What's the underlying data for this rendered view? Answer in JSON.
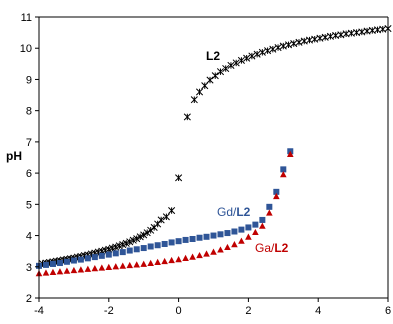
{
  "chart_data": {
    "type": "scatter",
    "title": "",
    "xlabel": "",
    "ylabel": "pH",
    "xlim": [
      -4,
      6
    ],
    "ylim": [
      2,
      11
    ],
    "x_ticks": [
      -4,
      -2,
      0,
      2,
      4,
      6
    ],
    "y_ticks": [
      2,
      3,
      4,
      5,
      6,
      7,
      8,
      9,
      10,
      11
    ],
    "x_tick_labels": [
      "-4",
      "-2",
      "0",
      "2",
      "4",
      "6"
    ],
    "y_tick_labels": [
      "2",
      "3",
      "4",
      "5",
      "6",
      "7",
      "8",
      "9",
      "10",
      "11"
    ],
    "grid": false,
    "labels": {
      "l2": "L2",
      "gd_prefix": "Gd/",
      "gd_suffix": "L2",
      "ga_prefix": "Ga/",
      "ga_suffix": "L2"
    },
    "colors": {
      "l2": "#000000",
      "gd": "#2f5597",
      "ga": "#c00000"
    },
    "series": [
      {
        "name": "L2",
        "marker": "asterisk",
        "points": [
          [
            -3.9,
            3.1
          ],
          [
            -3.8,
            3.12
          ],
          [
            -3.7,
            3.14
          ],
          [
            -3.6,
            3.16
          ],
          [
            -3.5,
            3.18
          ],
          [
            -3.4,
            3.2
          ],
          [
            -3.3,
            3.22
          ],
          [
            -3.2,
            3.24
          ],
          [
            -3.1,
            3.26
          ],
          [
            -3.0,
            3.28
          ],
          [
            -2.9,
            3.31
          ],
          [
            -2.8,
            3.33
          ],
          [
            -2.7,
            3.36
          ],
          [
            -2.6,
            3.38
          ],
          [
            -2.5,
            3.41
          ],
          [
            -2.4,
            3.44
          ],
          [
            -2.3,
            3.47
          ],
          [
            -2.2,
            3.5
          ],
          [
            -2.1,
            3.53
          ],
          [
            -2.0,
            3.56
          ],
          [
            -1.9,
            3.6
          ],
          [
            -1.8,
            3.63
          ],
          [
            -1.7,
            3.67
          ],
          [
            -1.6,
            3.71
          ],
          [
            -1.5,
            3.75
          ],
          [
            -1.4,
            3.8
          ],
          [
            -1.3,
            3.85
          ],
          [
            -1.2,
            3.9
          ],
          [
            -1.1,
            3.96
          ],
          [
            -1.0,
            4.02
          ],
          [
            -0.9,
            4.09
          ],
          [
            -0.8,
            4.17
          ],
          [
            -0.7,
            4.26
          ],
          [
            -0.6,
            4.37
          ],
          [
            -0.5,
            4.5
          ],
          [
            -0.35,
            4.6
          ],
          [
            -0.2,
            4.8
          ],
          [
            0.0,
            5.85
          ],
          [
            0.25,
            7.8
          ],
          [
            0.45,
            8.35
          ],
          [
            0.6,
            8.6
          ],
          [
            0.75,
            8.8
          ],
          [
            0.9,
            8.98
          ],
          [
            1.05,
            9.12
          ],
          [
            1.2,
            9.25
          ],
          [
            1.35,
            9.35
          ],
          [
            1.5,
            9.45
          ],
          [
            1.65,
            9.53
          ],
          [
            1.8,
            9.61
          ],
          [
            1.95,
            9.68
          ],
          [
            2.1,
            9.75
          ],
          [
            2.25,
            9.81
          ],
          [
            2.4,
            9.87
          ],
          [
            2.55,
            9.92
          ],
          [
            2.7,
            9.97
          ],
          [
            2.85,
            10.02
          ],
          [
            3.0,
            10.07
          ],
          [
            3.15,
            10.11
          ],
          [
            3.3,
            10.15
          ],
          [
            3.45,
            10.19
          ],
          [
            3.6,
            10.23
          ],
          [
            3.75,
            10.26
          ],
          [
            3.9,
            10.29
          ],
          [
            4.05,
            10.32
          ],
          [
            4.2,
            10.35
          ],
          [
            4.35,
            10.38
          ],
          [
            4.5,
            10.41
          ],
          [
            4.65,
            10.43
          ],
          [
            4.8,
            10.46
          ],
          [
            4.95,
            10.48
          ],
          [
            5.1,
            10.5
          ],
          [
            5.25,
            10.52
          ],
          [
            5.4,
            10.55
          ],
          [
            5.55,
            10.57
          ],
          [
            5.7,
            10.59
          ],
          [
            5.85,
            10.61
          ],
          [
            6.0,
            10.63
          ]
        ]
      },
      {
        "name": "Gd/L2",
        "marker": "square",
        "points": [
          [
            -4.0,
            3.03
          ],
          [
            -3.8,
            3.06
          ],
          [
            -3.6,
            3.09
          ],
          [
            -3.4,
            3.12
          ],
          [
            -3.2,
            3.16
          ],
          [
            -3.0,
            3.2
          ],
          [
            -2.8,
            3.23
          ],
          [
            -2.6,
            3.27
          ],
          [
            -2.4,
            3.31
          ],
          [
            -2.2,
            3.35
          ],
          [
            -2.0,
            3.39
          ],
          [
            -1.8,
            3.43
          ],
          [
            -1.6,
            3.47
          ],
          [
            -1.4,
            3.52
          ],
          [
            -1.2,
            3.56
          ],
          [
            -1.0,
            3.6
          ],
          [
            -0.8,
            3.65
          ],
          [
            -0.6,
            3.69
          ],
          [
            -0.4,
            3.73
          ],
          [
            -0.2,
            3.78
          ],
          [
            0.0,
            3.82
          ],
          [
            0.2,
            3.86
          ],
          [
            0.4,
            3.89
          ],
          [
            0.6,
            3.93
          ],
          [
            0.8,
            3.96
          ],
          [
            1.0,
            4.0
          ],
          [
            1.2,
            4.04
          ],
          [
            1.4,
            4.08
          ],
          [
            1.6,
            4.13
          ],
          [
            1.8,
            4.19
          ],
          [
            2.0,
            4.26
          ],
          [
            2.2,
            4.35
          ],
          [
            2.4,
            4.5
          ],
          [
            2.6,
            4.92
          ],
          [
            2.8,
            5.4
          ],
          [
            3.0,
            6.12
          ],
          [
            3.2,
            6.7
          ]
        ]
      },
      {
        "name": "Ga/L2",
        "marker": "triangle",
        "points": [
          [
            -4.0,
            2.78
          ],
          [
            -3.8,
            2.8
          ],
          [
            -3.6,
            2.82
          ],
          [
            -3.4,
            2.84
          ],
          [
            -3.2,
            2.86
          ],
          [
            -3.0,
            2.88
          ],
          [
            -2.8,
            2.9
          ],
          [
            -2.6,
            2.92
          ],
          [
            -2.4,
            2.94
          ],
          [
            -2.2,
            2.96
          ],
          [
            -2.0,
            2.98
          ],
          [
            -1.8,
            3.0
          ],
          [
            -1.6,
            3.02
          ],
          [
            -1.4,
            3.04
          ],
          [
            -1.2,
            3.06
          ],
          [
            -1.0,
            3.08
          ],
          [
            -0.8,
            3.11
          ],
          [
            -0.6,
            3.14
          ],
          [
            -0.4,
            3.17
          ],
          [
            -0.2,
            3.2
          ],
          [
            0.0,
            3.23
          ],
          [
            0.2,
            3.27
          ],
          [
            0.4,
            3.31
          ],
          [
            0.6,
            3.36
          ],
          [
            0.8,
            3.41
          ],
          [
            1.0,
            3.47
          ],
          [
            1.2,
            3.54
          ],
          [
            1.4,
            3.62
          ],
          [
            1.6,
            3.71
          ],
          [
            1.8,
            3.82
          ],
          [
            2.0,
            3.95
          ],
          [
            2.2,
            4.1
          ],
          [
            2.4,
            4.3
          ],
          [
            2.6,
            4.72
          ],
          [
            2.8,
            5.25
          ],
          [
            3.0,
            5.95
          ],
          [
            3.2,
            6.6
          ]
        ]
      }
    ]
  }
}
